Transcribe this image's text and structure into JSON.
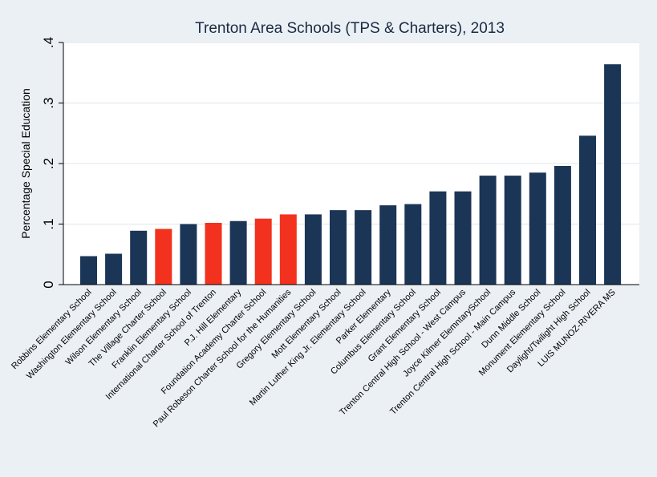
{
  "chart_data": {
    "type": "bar",
    "title": "Trenton Area Schools (TPS & Charters), 2013",
    "xlabel": "",
    "ylabel": "Percentage Special Education",
    "ylim": [
      0,
      0.4
    ],
    "yticks": [
      {
        "value": 0,
        "label": "0"
      },
      {
        "value": 0.1,
        "label": ".1"
      },
      {
        "value": 0.2,
        "label": ".2"
      },
      {
        "value": 0.3,
        "label": ".3"
      },
      {
        "value": 0.4,
        "label": ".4"
      }
    ],
    "grid": true,
    "colors": {
      "tps": "#1b3556",
      "charter": "#f2321e"
    },
    "categories": [
      "Robbins Elementary School",
      "Washington Elementary School",
      "Wilson Elementary School",
      "The Village Charter School",
      "Franklin Elementary School",
      "International Charter School of Trenton",
      "P.J. Hill Elementary",
      "Foundation Academy Charter School",
      "Paul Robeson Charter School for the Humanities",
      "Gregory Elementary School",
      "Mott Elementary School",
      "Martin Luther King Jr. Elementary School",
      "Parker Elementary",
      "Columbus Elementary School",
      "Grant Elementary School",
      "Trenton Central High School - West Campus",
      "Joyce Kilmer ElemntarySchool",
      "Trenton Central High School - Main Campus",
      "Dunn Middle School",
      "Monument Elementary School",
      "Daylight/Twilight High School",
      "LUIS MUNOZ-RIVERA MS"
    ],
    "values": [
      0.047,
      0.051,
      0.089,
      0.092,
      0.1,
      0.102,
      0.105,
      0.109,
      0.116,
      0.116,
      0.123,
      0.123,
      0.131,
      0.133,
      0.154,
      0.154,
      0.18,
      0.18,
      0.185,
      0.196,
      0.246,
      0.364
    ],
    "charter": [
      false,
      false,
      false,
      true,
      false,
      true,
      false,
      true,
      true,
      false,
      false,
      false,
      false,
      false,
      false,
      false,
      false,
      false,
      false,
      false,
      false,
      false
    ]
  }
}
